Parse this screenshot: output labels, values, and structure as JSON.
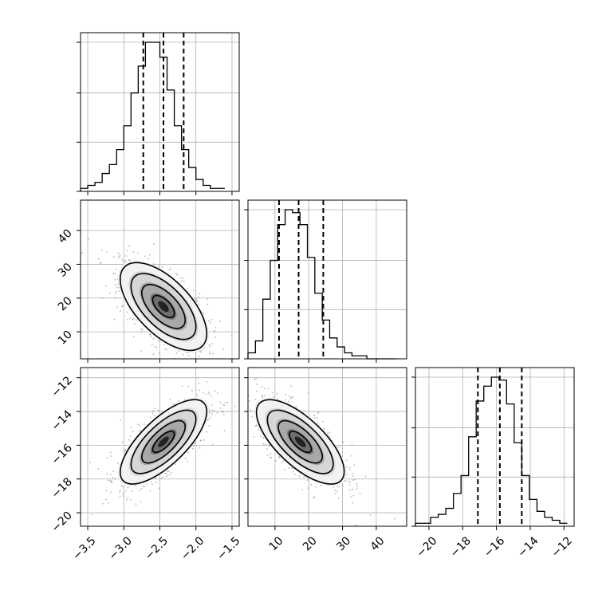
{
  "chart_data": {
    "type": "corner",
    "parameters": [
      {
        "index": 0,
        "mean": -2.45,
        "sd": 0.3,
        "range": [
          -3.6,
          -1.4
        ],
        "quantiles": [
          -2.73,
          -2.45,
          -2.17
        ],
        "ticks": [
          "−3.5",
          "−3.0",
          "−2.5",
          "−2.0",
          "−1.5"
        ],
        "tick_values": [
          -3.5,
          -3.0,
          -2.5,
          -2.0,
          -1.5
        ]
      },
      {
        "index": 1,
        "mean": 17.5,
        "sd": 6.5,
        "range": [
          2,
          49
        ],
        "quantiles": [
          11.2,
          17.0,
          24.3
        ],
        "ticks": [
          "10",
          "20",
          "30",
          "40"
        ],
        "tick_values": [
          10,
          20,
          30,
          40
        ]
      },
      {
        "index": 2,
        "mean": -15.8,
        "sd": 1.25,
        "range": [
          -20.8,
          -11.4
        ],
        "quantiles": [
          -17.1,
          -15.8,
          -14.5
        ],
        "ticks": [
          "−20",
          "−18",
          "−16",
          "−14",
          "−12"
        ],
        "tick_values": [
          -20,
          -18,
          -16,
          -14,
          -12
        ]
      }
    ],
    "histograms": [
      {
        "param": 0,
        "bin_start": -3.6,
        "bin_width": 0.1,
        "counts": [
          1,
          2,
          3,
          6,
          9,
          14,
          22,
          33,
          42,
          50,
          50,
          45,
          34,
          22,
          14,
          8,
          4,
          2,
          1,
          1
        ]
      },
      {
        "param": 1,
        "bin_start": 2,
        "bin_width": 2.2,
        "counts": [
          2,
          6,
          20,
          33,
          45,
          50,
          49,
          45,
          34,
          22,
          13,
          7,
          4,
          2,
          1,
          1,
          0,
          0,
          0,
          0
        ]
      },
      {
        "param": 2,
        "bin_start": -20.8,
        "bin_width": 0.45,
        "counts": [
          1,
          1,
          3,
          4,
          6,
          11,
          17,
          30,
          42,
          47,
          50,
          49,
          41,
          28,
          17,
          9,
          5,
          3,
          2,
          1
        ]
      }
    ],
    "pairs": [
      {
        "x_param": 0,
        "y_param": 1,
        "correlation": -0.62
      },
      {
        "x_param": 0,
        "y_param": 2,
        "correlation": 0.72
      },
      {
        "x_param": 1,
        "y_param": 2,
        "correlation": -0.7
      }
    ],
    "contour_levels_sigma": [
      0.5,
      1.0,
      1.5,
      2.0
    ],
    "quantile_style": "dashed",
    "grid": true
  }
}
